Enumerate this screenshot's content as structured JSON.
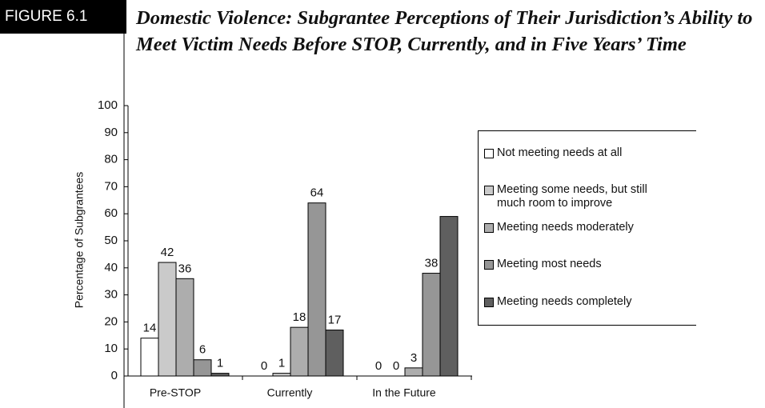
{
  "chart_data": {
    "type": "bar",
    "figure_label": "FIGURE 6.1",
    "title": "Domestic Violence: Subgrantee Perceptions of Their Jurisdiction’s Ability to Meet Victim Needs Before STOP, Currently, and in Five Years’ Time",
    "y_label": "Percentage of Subgrantees",
    "categories": [
      "Pre-STOP",
      "Currently",
      "In the Future"
    ],
    "series": [
      {
        "name": "Not meeting needs at all",
        "color": "#ffffff",
        "values": [
          14,
          0,
          0
        ]
      },
      {
        "name": "Meeting some needs, but still much room to improve",
        "color": "#cacaca",
        "values": [
          42,
          1,
          0
        ]
      },
      {
        "name": "Meeting needs moderately",
        "color": "#adadad",
        "values": [
          36,
          18,
          3
        ]
      },
      {
        "name": "Meeting most needs",
        "color": "#969696",
        "values": [
          6,
          64,
          38
        ]
      },
      {
        "name": "Meeting needs completely",
        "color": "#5f5f5f",
        "values": [
          1,
          17,
          59
        ],
        "value_labels": [
          "1",
          "17",
          null
        ]
      }
    ],
    "ylim": [
      0,
      100
    ],
    "yticks": [
      0,
      10,
      20,
      30,
      40,
      50,
      60,
      70,
      80,
      90,
      100
    ]
  }
}
